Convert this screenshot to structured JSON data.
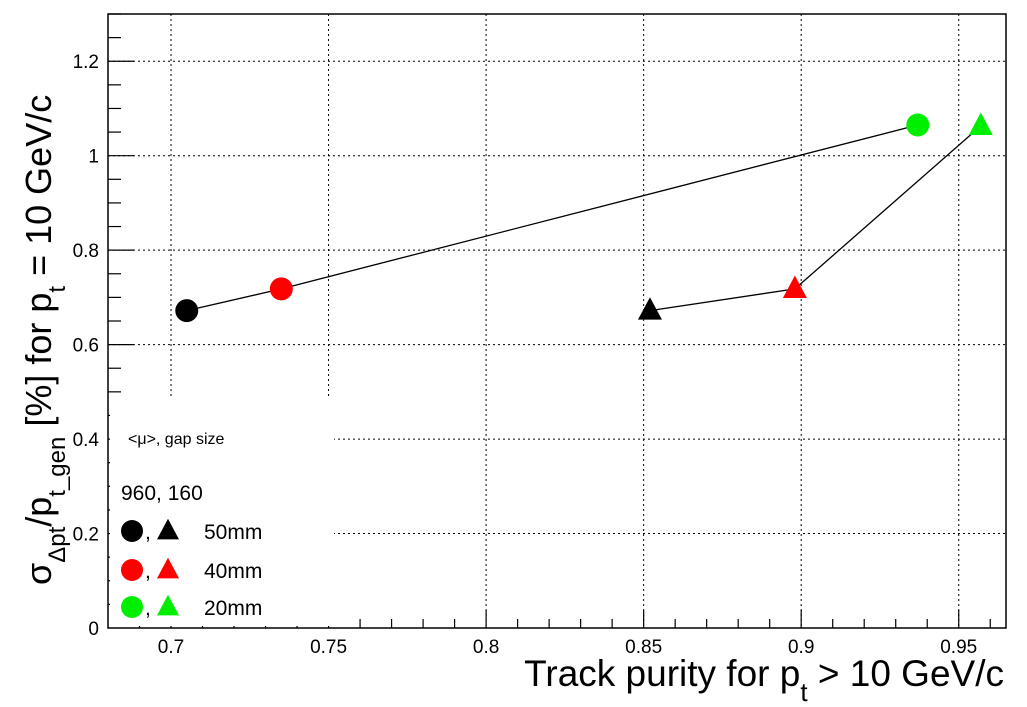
{
  "chart_data": {
    "type": "scatter",
    "xlabel": "Track purity for p",
    "xlabel_sub": "t",
    "xlabel_suffix": " > 10 GeV/c",
    "ylabel": {
      "sigma": "σ",
      "sigma_sub": "Δpt",
      "slash_p": "/p",
      "p_sub": "t_gen",
      "middle": " [%] for p",
      "pt_sub": "t",
      "suffix": " = 10 GeV/c"
    },
    "xlim": [
      0.68,
      0.965
    ],
    "ylim": [
      0,
      1.3
    ],
    "x_ticks": [
      0.7,
      0.75,
      0.8,
      0.85,
      0.9,
      0.95
    ],
    "x_tick_labels": [
      "0.7",
      "0.75",
      "0.8",
      "0.85",
      "0.9",
      "0.95"
    ],
    "y_ticks": [
      0,
      0.2,
      0.4,
      0.6,
      0.8,
      1,
      1.2
    ],
    "y_tick_labels": [
      "0",
      "0.2",
      "0.4",
      "0.6",
      "0.8",
      "1",
      "1.2"
    ],
    "grid": true,
    "series": [
      {
        "marker": "circle",
        "points": [
          {
            "x": 0.705,
            "y": 0.672,
            "color": "#000000"
          },
          {
            "x": 0.735,
            "y": 0.718,
            "color": "#ff0000"
          },
          {
            "x": 0.937,
            "y": 1.065,
            "color": "#00ee00"
          }
        ]
      },
      {
        "marker": "triangle",
        "points": [
          {
            "x": 0.852,
            "y": 0.672,
            "color": "#000000"
          },
          {
            "x": 0.898,
            "y": 0.718,
            "color": "#ff0000"
          },
          {
            "x": 0.957,
            "y": 1.063,
            "color": "#00ee00"
          }
        ]
      }
    ],
    "legend": {
      "placement": "bottom-left",
      "header": "<μ>,  gap size",
      "subheader": "960, 160",
      "entries": [
        {
          "label": "50mm",
          "color": "#000000"
        },
        {
          "label": "40mm",
          "color": "#ff0000"
        },
        {
          "label": "20mm",
          "color": "#00ee00"
        }
      ],
      "separator": ","
    }
  }
}
